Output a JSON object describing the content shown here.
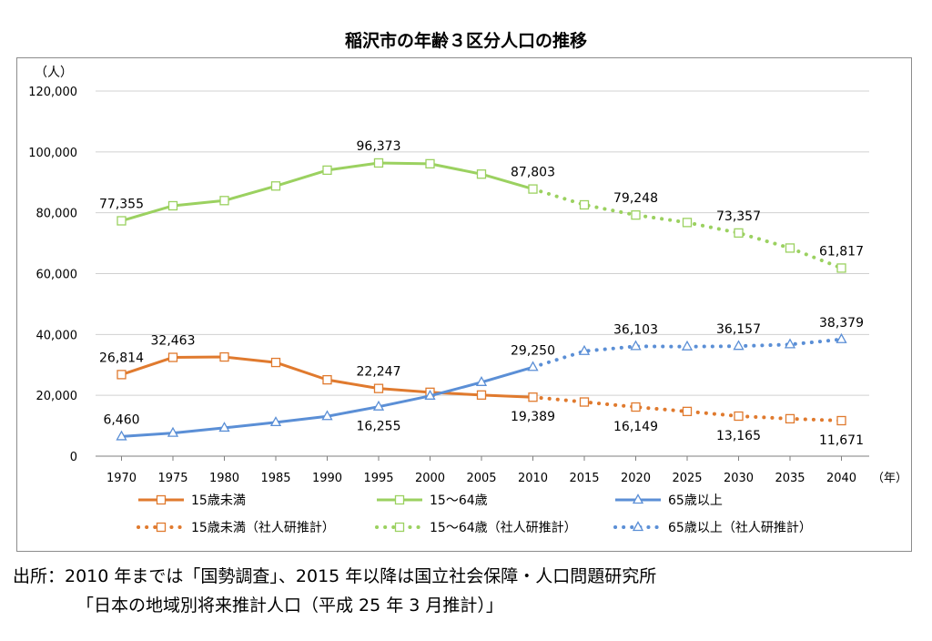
{
  "chart_data": {
    "type": "line",
    "title": "稲沢市の年齢３区分人口の推移",
    "y_unit": "（人）",
    "x_unit": "（年）",
    "x": [
      1970,
      1975,
      1980,
      1985,
      1990,
      1995,
      2000,
      2005,
      2010,
      2015,
      2020,
      2025,
      2030,
      2035,
      2040
    ],
    "y_ticks": [
      "0",
      "20,000",
      "40,000",
      "60,000",
      "80,000",
      "100,000",
      "120,000"
    ],
    "ylim": [
      0,
      120000
    ],
    "grid": true,
    "legend_position": "bottom",
    "series": [
      {
        "name": "15歳未満",
        "color": "#e07a2e",
        "marker": "square",
        "actual_x": [
          1970,
          1975,
          1980,
          1985,
          1990,
          1995,
          2000,
          2005,
          2010
        ],
        "actual": [
          26814,
          32463,
          32600,
          30800,
          25100,
          22247,
          21000,
          20100,
          19389
        ],
        "projected_name": "15歳未満（社人研推計）",
        "projected_x": [
          2010,
          2015,
          2020,
          2025,
          2030,
          2035,
          2040
        ],
        "projected": [
          19389,
          17800,
          16149,
          14700,
          13165,
          12300,
          11671
        ],
        "labels": [
          {
            "x": 1970,
            "text": "26,814",
            "pos": "above"
          },
          {
            "x": 1975,
            "text": "32,463",
            "pos": "above"
          },
          {
            "x": 1995,
            "text": "22,247",
            "pos": "above"
          },
          {
            "x": 2010,
            "text": "19,389",
            "pos": "below"
          },
          {
            "x": 2020,
            "text": "16,149",
            "pos": "below"
          },
          {
            "x": 2030,
            "text": "13,165",
            "pos": "below"
          },
          {
            "x": 2040,
            "text": "11,671",
            "pos": "below"
          }
        ]
      },
      {
        "name": "15～64歳",
        "color": "#9bd160",
        "marker": "square",
        "actual_x": [
          1970,
          1975,
          1980,
          1985,
          1990,
          1995,
          2000,
          2005,
          2010
        ],
        "actual": [
          77355,
          82300,
          84000,
          88800,
          94000,
          96373,
          96100,
          92700,
          87803
        ],
        "projected_name": "15～64歳（社人研推計）",
        "projected_x": [
          2010,
          2015,
          2020,
          2025,
          2030,
          2035,
          2040
        ],
        "projected": [
          87803,
          82600,
          79248,
          76800,
          73357,
          68400,
          61817
        ],
        "labels": [
          {
            "x": 1970,
            "text": "77,355",
            "pos": "above"
          },
          {
            "x": 1995,
            "text": "96,373",
            "pos": "above"
          },
          {
            "x": 2010,
            "text": "87,803",
            "pos": "above"
          },
          {
            "x": 2020,
            "text": "79,248",
            "pos": "above"
          },
          {
            "x": 2030,
            "text": "73,357",
            "pos": "above"
          },
          {
            "x": 2040,
            "text": "61,817",
            "pos": "above"
          }
        ]
      },
      {
        "name": "65歳以上",
        "color": "#5b8fd6",
        "marker": "triangle",
        "actual_x": [
          1970,
          1975,
          1980,
          1985,
          1990,
          1995,
          2000,
          2005,
          2010
        ],
        "actual": [
          6460,
          7600,
          9300,
          11100,
          13100,
          16255,
          19800,
          24300,
          29250
        ],
        "projected_name": "65歳以上（社人研推計）",
        "projected_x": [
          2010,
          2015,
          2020,
          2025,
          2030,
          2035,
          2040
        ],
        "projected": [
          29250,
          34500,
          36103,
          36000,
          36157,
          36700,
          38379
        ],
        "labels": [
          {
            "x": 1970,
            "text": "6,460",
            "pos": "above"
          },
          {
            "x": 1995,
            "text": "16,255",
            "pos": "below"
          },
          {
            "x": 2010,
            "text": "29,250",
            "pos": "above"
          },
          {
            "x": 2020,
            "text": "36,103",
            "pos": "above"
          },
          {
            "x": 2030,
            "text": "36,157",
            "pos": "above"
          },
          {
            "x": 2040,
            "text": "38,379",
            "pos": "above"
          }
        ]
      }
    ]
  },
  "source": {
    "line1": "出所：2010 年までは「国勢調査」、2015 年以降は国立社会保障・人口問題研究所",
    "line2": "「日本の地域別将来推計人口（平成 25 年 3 月推計）」"
  }
}
